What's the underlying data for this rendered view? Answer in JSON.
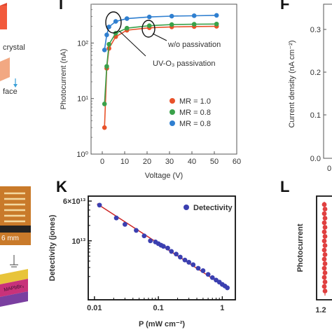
{
  "left_strip": {
    "label_crystal": "crystal",
    "label_face": "face",
    "label_scale": "6 mm",
    "label_material": "MAPbBr₃"
  },
  "chart_data": [
    {
      "type": "scatter",
      "panel": "top-middle",
      "xlabel": "Voltage (V)",
      "ylabel": "Photocurrent (nA)",
      "x_ticks": [
        "0",
        "10",
        "20",
        "30",
        "40",
        "50",
        "60"
      ],
      "y_ticks": [
        "10⁰",
        "10¹",
        "10²"
      ],
      "xlim": [
        -5,
        60
      ],
      "ylim": [
        1,
        500
      ],
      "yscale": "log",
      "annotations": [
        "w/o passivation",
        "UV-O₃ passivation"
      ],
      "legend_position": "bottom-right",
      "series": [
        {
          "name": "MR = 1.0",
          "color": "#e8522a",
          "x": [
            1,
            2,
            3,
            6,
            11,
            21,
            31,
            41,
            51
          ],
          "y": [
            3,
            35,
            80,
            130,
            170,
            188,
            195,
            198,
            200
          ]
        },
        {
          "name": "MR = 0.8",
          "color": "#3aa14a",
          "x": [
            1,
            2,
            3,
            6,
            11,
            21,
            31,
            41,
            51
          ],
          "y": [
            8,
            38,
            95,
            150,
            185,
            205,
            215,
            218,
            220
          ]
        },
        {
          "name": "MR = 0.8",
          "color": "#2f7fd0",
          "x": [
            1,
            2,
            3,
            6,
            11,
            21,
            31,
            41,
            51
          ],
          "y": [
            75,
            140,
            195,
            245,
            275,
            295,
            305,
            310,
            315
          ]
        }
      ]
    },
    {
      "type": "scatter",
      "panel": "K",
      "panel_letter": "K",
      "xlabel": "P (mW cm⁻²)",
      "ylabel": "Detectivity (jones)",
      "x_ticks": [
        "0.01",
        "0.1",
        "1"
      ],
      "y_ticks": [
        "6×10¹³",
        "10¹³"
      ],
      "xscale": "log",
      "yscale": "log",
      "xlim": [
        0.008,
        1.6
      ],
      "ylim": [
        700000000000.0,
        75000000000000.0
      ],
      "legend_position": "top-right",
      "series": [
        {
          "name": "Detectivity",
          "color": "#3b3fb0",
          "x": [
            0.012,
            0.022,
            0.03,
            0.045,
            0.06,
            0.075,
            0.09,
            0.1,
            0.11,
            0.12,
            0.14,
            0.16,
            0.19,
            0.22,
            0.26,
            0.3,
            0.35,
            0.42,
            0.5,
            0.6,
            0.7,
            0.8,
            0.9,
            1.0,
            1.1,
            1.2
          ],
          "y": [
            50000000000000.0,
            28000000000000.0,
            21000000000000.0,
            16000000000000.0,
            12500000000000.0,
            10000000000000.0,
            9500000000000.0,
            8800000000000.0,
            8200000000000.0,
            7800000000000.0,
            7200000000000.0,
            6200000000000.0,
            5500000000000.0,
            4800000000000.0,
            4200000000000.0,
            3800000000000.0,
            3400000000000.0,
            2900000000000.0,
            2600000000000.0,
            2200000000000.0,
            1900000000000.0,
            1700000000000.0,
            1550000000000.0,
            1400000000000.0,
            1300000000000.0,
            1200000000000.0
          ]
        },
        {
          "name": "",
          "type": "line",
          "color": "#cc2222",
          "x": [
            0.011,
            1.25
          ],
          "y": [
            53000000000000.0,
            1150000000000.0
          ]
        }
      ]
    },
    {
      "type": "line",
      "panel": "top-right",
      "ylabel": "Current density (nA cm⁻²)",
      "y_ticks": [
        "0.0",
        "0.1",
        "0.2",
        "0.3"
      ],
      "x_ticks": [
        "0"
      ]
    },
    {
      "type": "scatter",
      "panel": "L",
      "panel_letter": "L",
      "ylabel": "Photocurrent",
      "x_ticks": [
        "1.2"
      ]
    }
  ]
}
